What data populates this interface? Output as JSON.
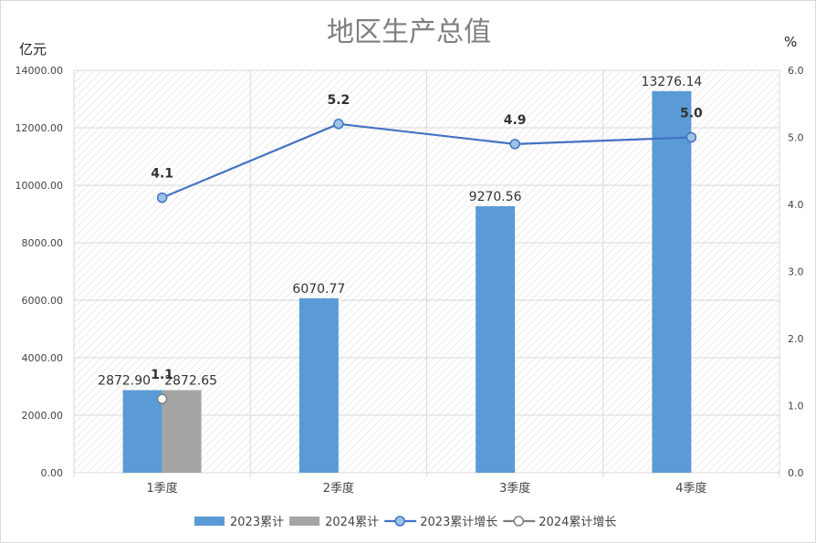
{
  "chart_data": {
    "type": "bar+line",
    "title": "地区生产总值",
    "ylabel_left": "亿元",
    "ylabel_right": "%",
    "categories": [
      "1季度",
      "2季度",
      "3季度",
      "4季度"
    ],
    "ylim_left": [
      0,
      14000
    ],
    "yticks_left": [
      "0.00",
      "2000.00",
      "4000.00",
      "6000.00",
      "8000.00",
      "10000.00",
      "12000.00",
      "14000.00"
    ],
    "ylim_right": [
      0,
      6
    ],
    "yticks_right": [
      "0.0",
      "1.0",
      "2.0",
      "3.0",
      "4.0",
      "5.0",
      "6.0"
    ],
    "grid": true,
    "legend_position": "bottom",
    "series": [
      {
        "name": "2023累计",
        "kind": "bar",
        "axis": "left",
        "color": "#5b9bd5",
        "values": [
          2872.9,
          6070.77,
          9270.56,
          13276.14
        ],
        "labels": [
          "2872.90",
          "6070.77",
          "9270.56",
          "13276.14"
        ]
      },
      {
        "name": "2024累计",
        "kind": "bar",
        "axis": "left",
        "color": "#a5a5a5",
        "values": [
          2872.65,
          null,
          null,
          null
        ],
        "labels": [
          "2872.65",
          "",
          "",
          ""
        ]
      },
      {
        "name": "2023累计增长",
        "kind": "line",
        "axis": "right",
        "color": "#4472c4",
        "marker_fill": "#9dc3e6",
        "values": [
          4.1,
          5.2,
          4.9,
          5.0
        ],
        "labels": [
          "4.1",
          "5.2",
          "4.9",
          "5.0"
        ]
      },
      {
        "name": "2024累计增长",
        "kind": "line",
        "axis": "right",
        "color": "#7f7f7f",
        "marker_fill": "#ffffff",
        "values": [
          1.1,
          null,
          null,
          null
        ],
        "labels": [
          "1.1",
          "",
          "",
          ""
        ]
      }
    ]
  }
}
